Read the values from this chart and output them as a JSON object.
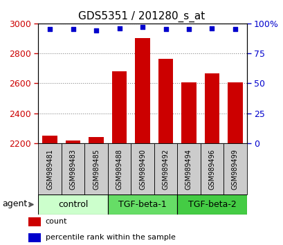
{
  "title": "GDS5351 / 201280_s_at",
  "samples": [
    "GSM989481",
    "GSM989483",
    "GSM989485",
    "GSM989488",
    "GSM989490",
    "GSM989492",
    "GSM989494",
    "GSM989496",
    "GSM989499"
  ],
  "count_values": [
    2250,
    2220,
    2240,
    2680,
    2900,
    2765,
    2605,
    2665,
    2605
  ],
  "percentile_values": [
    95,
    95,
    94,
    96,
    97,
    95,
    95,
    96,
    95
  ],
  "ylim_left": [
    2200,
    3000
  ],
  "ylim_right": [
    0,
    100
  ],
  "yticks_left": [
    2200,
    2400,
    2600,
    2800,
    3000
  ],
  "yticks_right": [
    0,
    25,
    50,
    75,
    100
  ],
  "ytick_labels_right": [
    "0",
    "25",
    "50",
    "75",
    "100%"
  ],
  "bar_color": "#cc0000",
  "dot_color": "#0000cc",
  "bar_width": 0.65,
  "grid_color": "#888888",
  "plot_bg": "#ffffff",
  "sample_box_color": "#cccccc",
  "group_rows": [
    {
      "label": "control",
      "start": 0,
      "end": 3,
      "color": "#ccffcc"
    },
    {
      "label": "TGF-beta-1",
      "start": 3,
      "end": 6,
      "color": "#66dd66"
    },
    {
      "label": "TGF-beta-2",
      "start": 6,
      "end": 9,
      "color": "#44cc44"
    }
  ],
  "agent_label": "agent",
  "legend_items": [
    {
      "label": "count",
      "color": "#cc0000"
    },
    {
      "label": "percentile rank within the sample",
      "color": "#0000cc"
    }
  ],
  "fig_width": 4.1,
  "fig_height": 3.54,
  "dpi": 100
}
